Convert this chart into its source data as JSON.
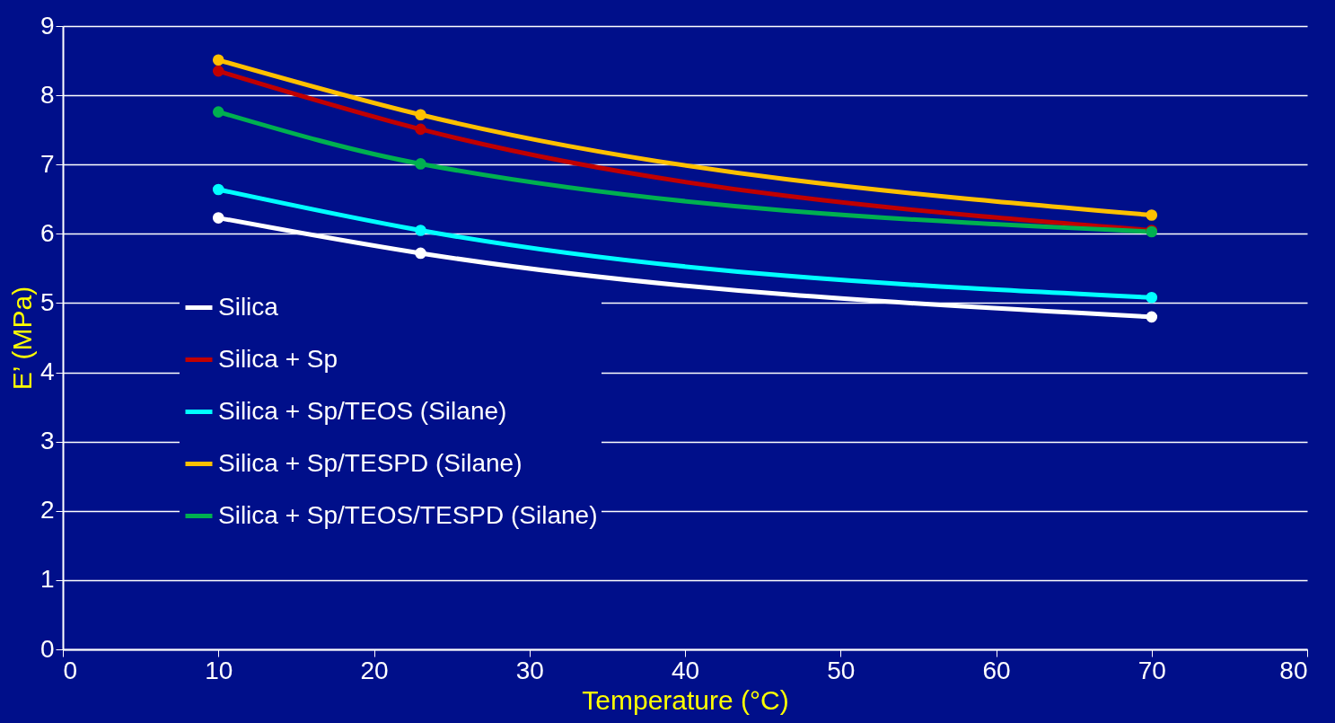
{
  "chart_data": {
    "type": "line",
    "xlabel": "Temperature (°C)",
    "ylabel": "E’ (MPa)",
    "x": [
      10,
      23,
      70
    ],
    "series": [
      {
        "name": "Silica",
        "color": "#ffffff",
        "values": [
          6.23,
          5.72,
          4.8
        ]
      },
      {
        "name": "Silica + Sp",
        "color": "#c00000",
        "values": [
          8.35,
          7.51,
          6.05
        ]
      },
      {
        "name": "Silica + Sp/TEOS (Silane)",
        "color": "#00ffff",
        "values": [
          6.64,
          6.05,
          5.08
        ]
      },
      {
        "name": "Silica + Sp/TESPD (Silane)",
        "color": "#ffc000",
        "values": [
          8.51,
          7.72,
          6.27
        ]
      },
      {
        "name": "Silica + Sp/TEOS/TESPD (Silane)",
        "color": "#00b050",
        "values": [
          7.76,
          7.01,
          6.03
        ]
      }
    ],
    "xlim": [
      0,
      80
    ],
    "xticks": [
      0,
      10,
      20,
      30,
      40,
      50,
      60,
      70,
      80
    ],
    "ylim": [
      0,
      9
    ],
    "yticks": [
      0,
      1,
      2,
      3,
      4,
      5,
      6,
      7,
      8,
      9
    ],
    "grid": "y",
    "legend": "bottom left",
    "marker": "circle",
    "line_style": "solid"
  }
}
